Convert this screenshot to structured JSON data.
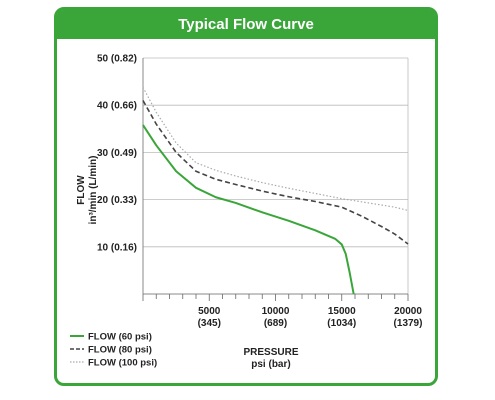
{
  "chart_data": {
    "type": "line",
    "title": "Typical Flow Curve",
    "xlabel": "PRESSURE",
    "xlabel_unit": "psi (bar)",
    "ylabel": "FLOW",
    "ylabel_unit": "in³/min (L/min)",
    "xlim": [
      0,
      20000
    ],
    "ylim": [
      0,
      50
    ],
    "x_ticks": [
      {
        "value": 5000,
        "label": "5000",
        "sublabel": "(345)"
      },
      {
        "value": 10000,
        "label": "10000",
        "sublabel": "(689)"
      },
      {
        "value": 15000,
        "label": "15000",
        "sublabel": "(1034)"
      },
      {
        "value": 20000,
        "label": "20000",
        "sublabel": "(1379)"
      }
    ],
    "y_ticks": [
      {
        "value": 10,
        "label": "10 (0.16)"
      },
      {
        "value": 20,
        "label": "20 (0.33)"
      },
      {
        "value": 30,
        "label": "30 (0.49)"
      },
      {
        "value": 40,
        "label": "40 (0.66)"
      },
      {
        "value": 50,
        "label": "50 (0.82)"
      }
    ],
    "grid": "horizontal",
    "legend_position": "bottom-left",
    "series": [
      {
        "name": "FLOW (60 psi)",
        "style": "solid",
        "color": "#3aa63a",
        "x": [
          0,
          1000,
          2500,
          4000,
          5500,
          7000,
          9000,
          11000,
          13000,
          14500,
          15000,
          15300,
          15600,
          15900
        ],
        "y": [
          35.8,
          31.5,
          26,
          22.5,
          20.5,
          19.3,
          17.3,
          15.5,
          13.5,
          11.7,
          10.5,
          8.5,
          4.5,
          0
        ]
      },
      {
        "name": "FLOW (80 psi)",
        "style": "dashed",
        "color": "#444444",
        "x": [
          0,
          1000,
          2500,
          4000,
          5500,
          7000,
          9000,
          11000,
          13000,
          15000,
          16500,
          18000,
          19000,
          20000
        ],
        "y": [
          41,
          36,
          30,
          26,
          24.3,
          23.2,
          21.8,
          20.6,
          19.6,
          18.4,
          16.5,
          14.3,
          12.7,
          10.6
        ]
      },
      {
        "name": "FLOW (100 psi)",
        "style": "dotted",
        "color": "#aaaaaa",
        "x": [
          0,
          1000,
          2500,
          4000,
          5500,
          7000,
          9000,
          11000,
          13000,
          15000,
          17000,
          19000,
          20000
        ],
        "y": [
          43.8,
          38.5,
          32,
          27.8,
          26.2,
          25,
          23.6,
          22.4,
          21.3,
          20.2,
          19.3,
          18.4,
          17.7
        ]
      }
    ]
  }
}
